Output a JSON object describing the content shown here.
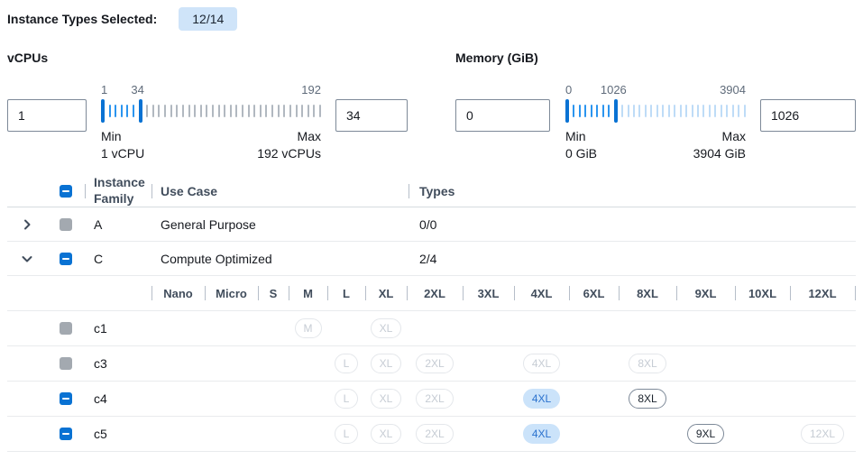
{
  "header": {
    "label": "Instance Types Selected:",
    "badge": "12/14"
  },
  "filters": {
    "vcpus": {
      "title": "vCPUs",
      "min_input": "1",
      "max_input": "34",
      "scale_start_label": "1",
      "scale_current_label": "34",
      "scale_end_label": "192",
      "min_caption": "Min",
      "max_caption": "Max",
      "min_value_label": "1 vCPU",
      "max_value_label": "192 vCPUs",
      "slider": {
        "min": 1,
        "max": 192,
        "low": 1,
        "high": 34,
        "inactive_color": "#b1b8c0"
      }
    },
    "memory": {
      "title": "Memory (GiB)",
      "min_input": "0",
      "max_input": "1026",
      "scale_start_label": "0",
      "scale_current_label": "1026",
      "scale_end_label": "3904",
      "min_caption": "Min",
      "max_caption": "Max",
      "min_value_label": "0 GiB",
      "max_value_label": "3904 GiB",
      "slider": {
        "min": 0,
        "max": 3904,
        "low": 0,
        "high": 1026,
        "inactive_color": "#bedcf7"
      }
    }
  },
  "table": {
    "columns": {
      "family": "Instance Family",
      "use_case": "Use Case",
      "types": "Types"
    },
    "size_columns": [
      "Nano",
      "Micro",
      "S",
      "M",
      "L",
      "XL",
      "2XL",
      "3XL",
      "4XL",
      "6XL",
      "8XL",
      "9XL",
      "10XL",
      "12XL"
    ],
    "families": [
      {
        "name": "A",
        "use_case": "General Purpose",
        "types": "0/0",
        "expanded": false,
        "checkbox": "disabled",
        "rows": []
      },
      {
        "name": "C",
        "use_case": "Compute Optimized",
        "types": "2/4",
        "expanded": true,
        "checkbox": "indeterminate",
        "rows": [
          {
            "name": "c1",
            "checkbox": "disabled",
            "sizes": {
              "M": "disabled",
              "XL": "disabled"
            }
          },
          {
            "name": "c3",
            "checkbox": "disabled",
            "sizes": {
              "L": "disabled",
              "XL": "disabled",
              "2XL": "disabled",
              "4XL": "disabled",
              "8XL": "disabled"
            }
          },
          {
            "name": "c4",
            "checkbox": "indeterminate",
            "sizes": {
              "L": "disabled",
              "XL": "disabled",
              "2XL": "disabled",
              "4XL": "selected",
              "8XL": "available"
            }
          },
          {
            "name": "c5",
            "checkbox": "indeterminate",
            "sizes": {
              "L": "disabled",
              "XL": "disabled",
              "2XL": "disabled",
              "4XL": "selected",
              "9XL": "available",
              "12XL": "disabled"
            }
          }
        ]
      }
    ]
  },
  "colors": {
    "accent_blue": "#0972d3",
    "tick_active": "#2b95ef",
    "badge_bg": "#cfe4f9",
    "pill_selected_bg": "#cbe3fa",
    "pill_selected_fg": "#2b72ce",
    "checkbox_disabled": "#a3a9b0"
  }
}
